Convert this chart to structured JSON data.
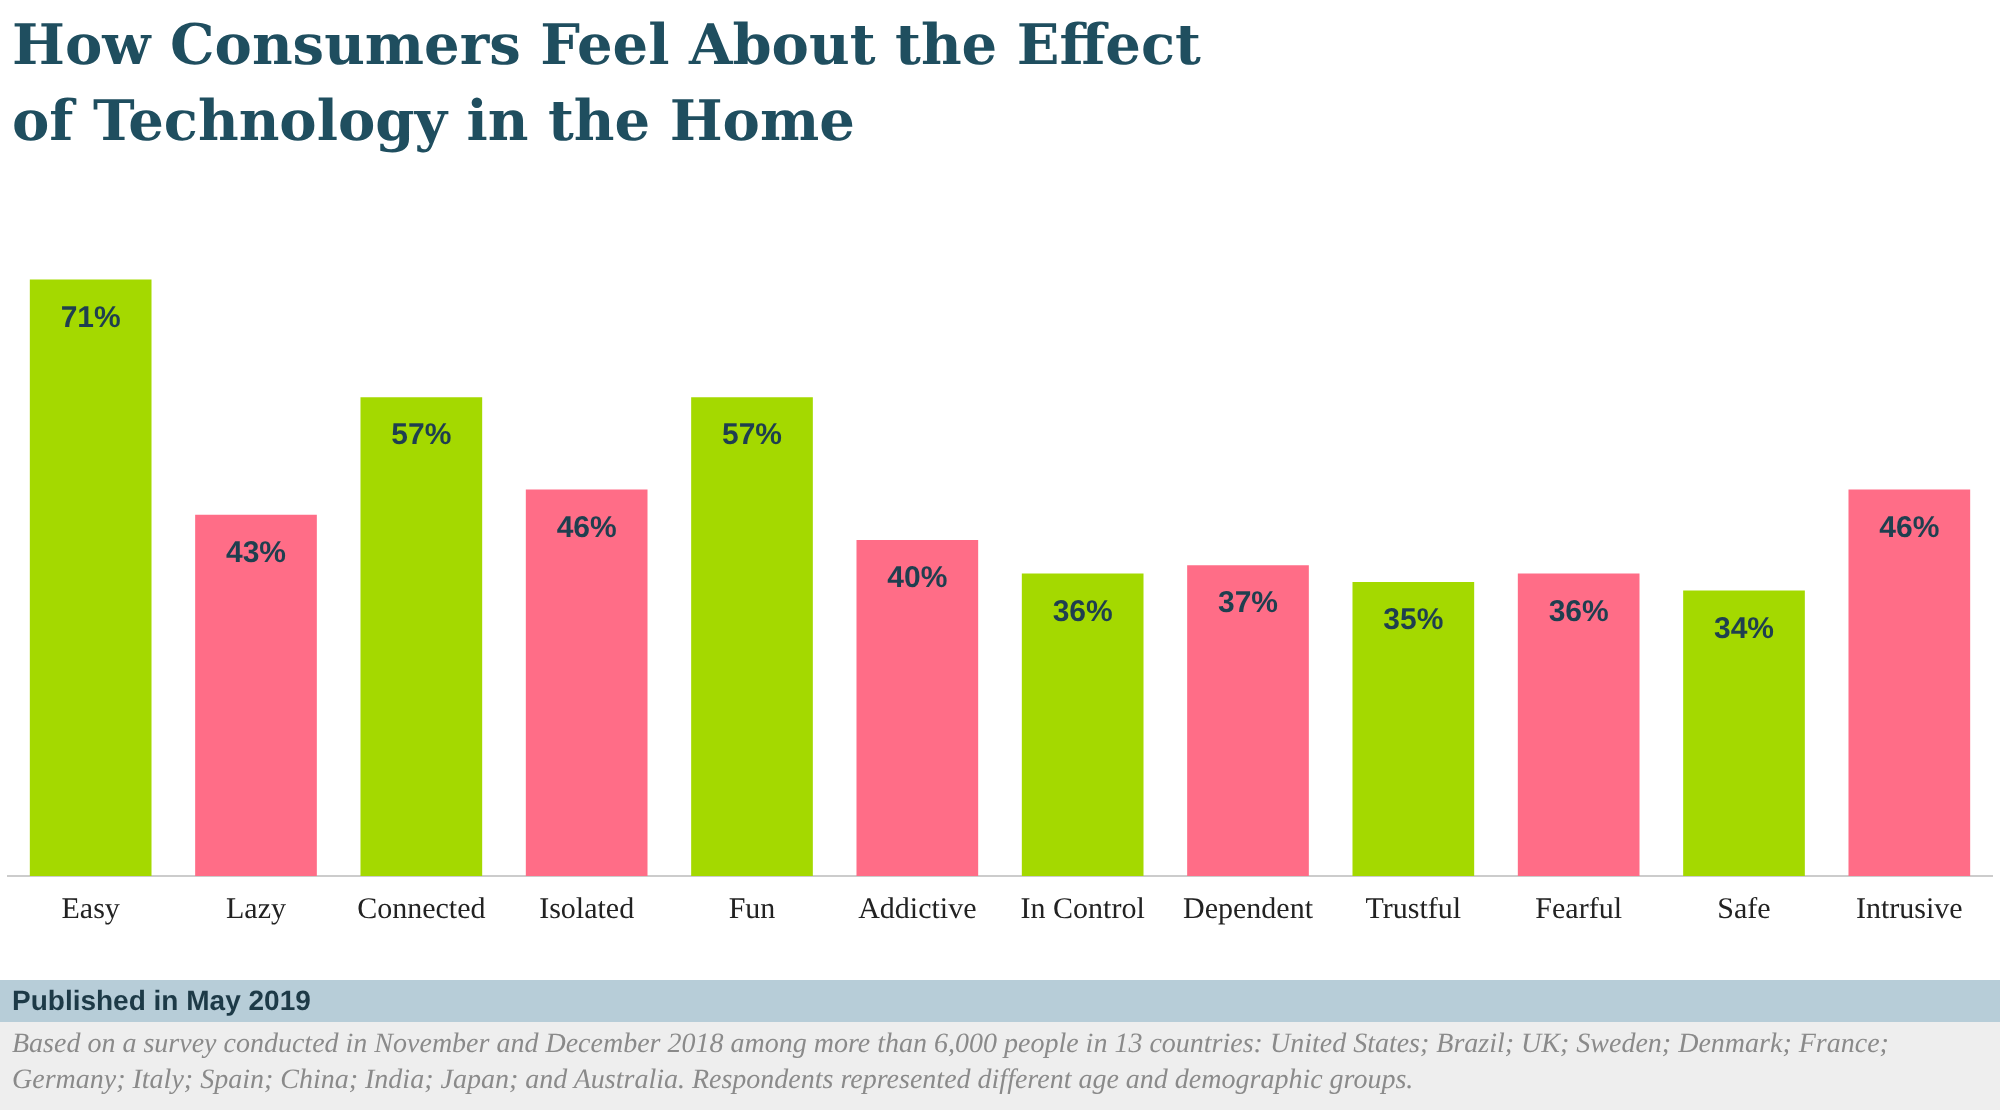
{
  "chart_data": {
    "type": "bar",
    "title": "How Consumers Feel About the Effect of Technology in the Home",
    "categories": [
      "Easy",
      "Lazy",
      "Connected",
      "Isolated",
      "Fun",
      "Addictive",
      "In Control",
      "Dependent",
      "Trustful",
      "Fearful",
      "Safe",
      "Intrusive"
    ],
    "values": [
      71,
      43,
      57,
      46,
      57,
      40,
      36,
      37,
      35,
      36,
      34,
      46
    ],
    "value_labels": [
      "71%",
      "43%",
      "57%",
      "46%",
      "57%",
      "40%",
      "36%",
      "37%",
      "35%",
      "36%",
      "34%",
      "46%"
    ],
    "colors": [
      "#a4d900",
      "#ff6d87",
      "#a4d900",
      "#ff6d87",
      "#a4d900",
      "#ff6d87",
      "#a4d900",
      "#ff6d87",
      "#a4d900",
      "#ff6d87",
      "#a4d900",
      "#ff6d87"
    ],
    "grid": false,
    "legend": false,
    "annotations": [
      "Published in May 2019",
      "Based on a survey conducted in November and December 2018 among more than 6,000 people in 13 countries: United States; Brazil; UK; Sweden; Denmark; France; Germany; Italy; Spain; China; India; Japan; and Australia. Respondents represented different age and demographic groups."
    ]
  }
}
